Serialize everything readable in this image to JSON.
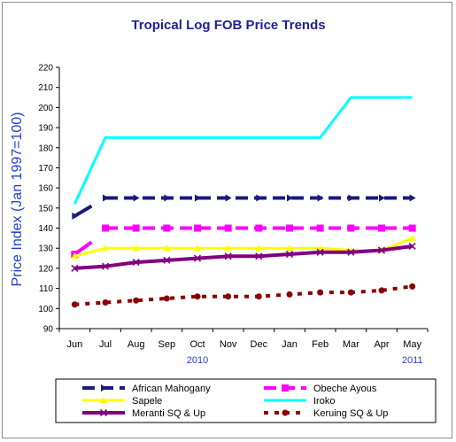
{
  "chart_data": {
    "type": "line",
    "title": "Tropical Log FOB Price Trends",
    "ylabel": "Price Index (Jan 1997=100)",
    "xlabel": "",
    "ylim": [
      90,
      220
    ],
    "yticks": [
      90,
      100,
      110,
      120,
      130,
      140,
      150,
      160,
      170,
      180,
      190,
      200,
      210,
      220
    ],
    "categories": [
      "Jun",
      "Jul",
      "Aug",
      "Sep",
      "Oct",
      "Nov",
      "Dec",
      "Jan",
      "Feb",
      "Mar",
      "Apr",
      "May"
    ],
    "year_labels": [
      {
        "text": "2010",
        "at": "Oct"
      },
      {
        "text": "2011",
        "at": "May"
      }
    ],
    "grid": false,
    "legend_position": "bottom",
    "series": [
      {
        "name": "African Mahogany",
        "color": "#1a1a80",
        "dash": "dash",
        "marker": "arrow",
        "values": [
          146,
          155,
          155,
          155,
          155,
          155,
          155,
          155,
          155,
          155,
          155,
          155
        ],
        "start_value": 146,
        "ramp_end": 151
      },
      {
        "name": "Obeche Ayous",
        "color": "#ff00ff",
        "dash": "dash",
        "marker": "square",
        "values": [
          127,
          140,
          140,
          140,
          140,
          140,
          140,
          140,
          140,
          140,
          140,
          140
        ],
        "start_value": 127,
        "ramp_end": 133
      },
      {
        "name": "Sapele",
        "color": "#ffff00",
        "dash": "solid",
        "marker": "triangle",
        "values": [
          126,
          130,
          130,
          130,
          130,
          130,
          130,
          130,
          130,
          129,
          129,
          135
        ]
      },
      {
        "name": "Iroko",
        "color": "#00ffff",
        "dash": "solid",
        "marker": "none",
        "values": [
          152,
          185,
          185,
          185,
          185,
          185,
          185,
          185,
          185,
          205,
          205,
          205
        ]
      },
      {
        "name": "Meranti SQ & Up",
        "color": "#800080",
        "dash": "solid",
        "marker": "x",
        "values": [
          120,
          121,
          123,
          124,
          125,
          126,
          126,
          127,
          128,
          128,
          129,
          131
        ]
      },
      {
        "name": "Keruing SQ & Up",
        "color": "#8b0000",
        "dash": "dash",
        "marker": "circle",
        "values": [
          102,
          103,
          104,
          105,
          106,
          106,
          106,
          107,
          108,
          108,
          109,
          111
        ]
      }
    ]
  },
  "colors": {
    "axis": "#000000",
    "legend_border": "#000000",
    "frame": "#8c8c8c"
  }
}
